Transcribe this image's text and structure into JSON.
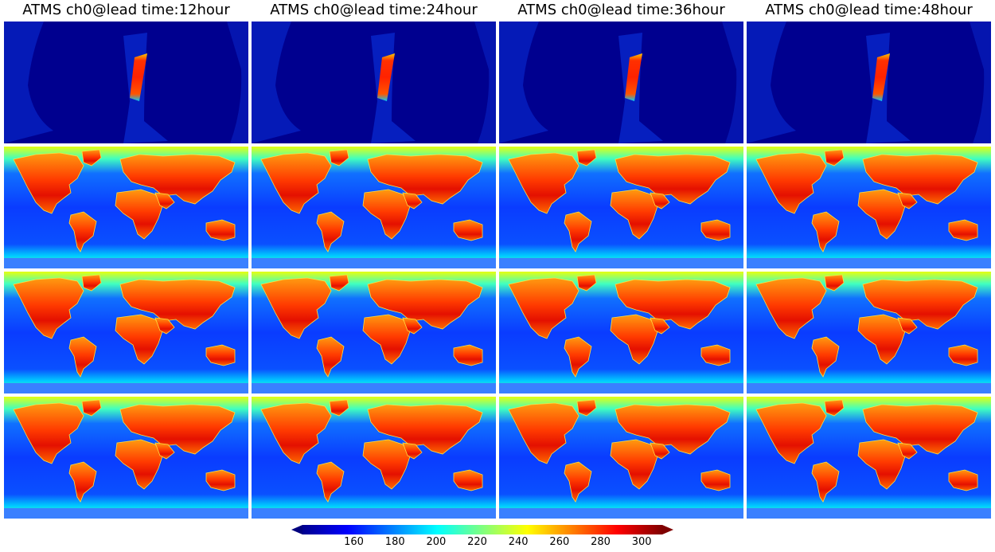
{
  "figure": {
    "columns": [
      {
        "title": "ATMS ch0@lead time:12hour"
      },
      {
        "title": "ATMS ch0@lead time:24hour"
      },
      {
        "title": "ATMS ch0@lead time:36hour"
      },
      {
        "title": "ATMS ch0@lead time:48hour"
      }
    ],
    "rows": [
      {
        "kind": "observation-swath"
      },
      {
        "kind": "brightness-field"
      },
      {
        "kind": "brightness-field"
      },
      {
        "kind": "brightness-field"
      }
    ],
    "colormap": "jet",
    "colorbar": {
      "range": [
        135,
        310
      ],
      "ticks": [
        "160",
        "180",
        "200",
        "220",
        "240",
        "260",
        "280",
        "300"
      ],
      "extend": "both"
    }
  }
}
